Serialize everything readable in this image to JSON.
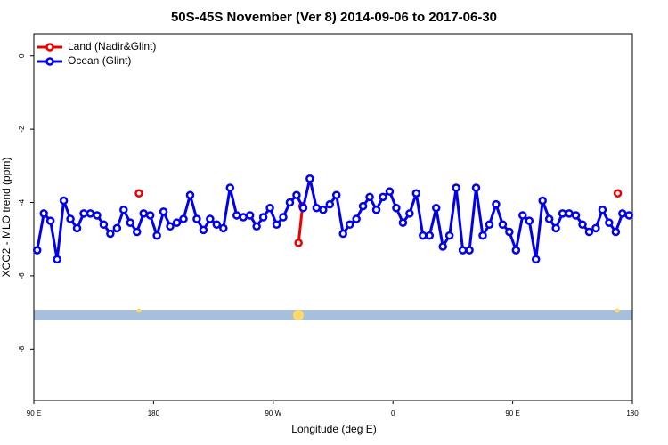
{
  "chart_data": {
    "type": "line",
    "title": "50S-45S November (Ver 8)   2014-09-06 to 2017-06-30",
    "x_label": "Longitude (deg E)",
    "y_label": "XCO2 - MLO trend (ppm)",
    "xlim": [
      90,
      540
    ],
    "xticks": [
      {
        "value": 90,
        "label": "90 E"
      },
      {
        "value": 180,
        "label": "180"
      },
      {
        "value": 270,
        "label": "90 W"
      },
      {
        "value": 360,
        "label": "0"
      },
      {
        "value": 450,
        "label": "90 E"
      },
      {
        "value": 540,
        "label": "180"
      }
    ],
    "ylim": [
      -9.4,
      0.6
    ],
    "yticks": [
      0,
      -2,
      -4,
      -6,
      -8
    ],
    "legend": "top-left",
    "series": [
      {
        "name": "Land (Nadir&Glint)",
        "color": "#ee0000",
        "x": [
          169,
          null,
          289,
          292,
          null,
          529
        ],
        "values": [
          -3.75,
          null,
          -5.1,
          -4.1,
          null,
          -3.75
        ]
      },
      {
        "name": "Ocean (Glint)",
        "color": "#0000ee",
        "x": [
          92.5,
          97.5,
          102.5,
          107.5,
          112.5,
          117.5,
          122.5,
          127.5,
          132.5,
          137.5,
          142.5,
          147.5,
          152.5,
          157.5,
          162.5,
          167.5,
          172.5,
          177.5,
          182.5,
          187.5,
          192.5,
          197.5,
          202.5,
          207.5,
          212.5,
          217.5,
          222.5,
          227.5,
          232.5,
          237.5,
          242.5,
          247.5,
          252.5,
          257.5,
          262.5,
          267.5,
          272.5,
          277.5,
          282.5,
          287.5,
          292.5,
          297.5,
          302.5,
          307.5,
          312.5,
          317.5,
          322.5,
          327.5,
          332.5,
          337.5,
          342.5,
          347.5,
          352.5,
          357.5,
          362.5,
          367.5,
          372.5,
          377.5,
          382.5,
          387.5,
          392.5,
          397.5,
          402.5,
          407.5,
          412.5,
          417.5,
          422.5,
          427.5,
          432.5,
          437.5,
          442.5,
          447.5,
          452.5,
          457.5,
          462.5,
          467.5,
          472.5,
          477.5,
          482.5,
          487.5,
          492.5,
          497.5,
          502.5,
          507.5,
          512.5,
          517.5,
          522.5,
          527.5,
          532.5,
          537.5
        ],
        "values": [
          -5.3,
          -4.3,
          -4.5,
          -5.55,
          -3.95,
          -4.45,
          -4.7,
          -4.3,
          -4.3,
          -4.35,
          -4.6,
          -4.85,
          -4.7,
          -4.2,
          -4.55,
          -4.8,
          -4.3,
          -4.35,
          -4.9,
          -4.25,
          -4.65,
          -4.55,
          -4.45,
          -3.8,
          -4.45,
          -4.75,
          -4.45,
          -4.6,
          -4.7,
          -3.6,
          -4.35,
          -4.4,
          -4.35,
          -4.65,
          -4.4,
          -4.15,
          -4.6,
          -4.4,
          -4.0,
          -3.8,
          -4.15,
          -3.35,
          -4.15,
          -4.2,
          -4.05,
          -3.8,
          -4.85,
          -4.6,
          -4.45,
          -4.1,
          -3.85,
          -4.2,
          -3.85,
          -3.7,
          -4.15,
          -4.55,
          -4.3,
          -3.75,
          -4.9,
          -4.9,
          -4.15,
          -5.2,
          -4.9,
          -3.6,
          -5.3,
          -5.3,
          -3.6,
          -4.9,
          -4.6,
          -4.05,
          -4.6,
          -4.8,
          -5.3,
          -4.35,
          -4.5,
          -5.55,
          -3.95,
          -4.45,
          -4.7,
          -4.3,
          -4.3,
          -4.35,
          -4.6,
          -4.8,
          -4.7,
          -4.2,
          -4.55,
          -4.8,
          -4.3,
          -4.35
        ]
      }
    ]
  }
}
